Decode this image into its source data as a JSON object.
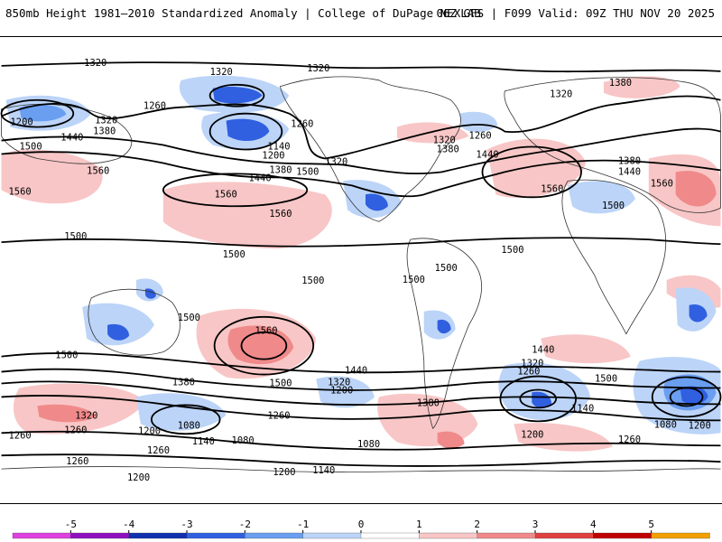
{
  "header": {
    "title": "850mb Height 1981–2010 Standardized Anomaly | College of DuPage NEXLAB",
    "run_info": "06Z GFS | F099 Valid: 09Z THU NOV 20 2025"
  },
  "map": {
    "contour_labels": [
      "1320",
      "1260",
      "1200",
      "1380",
      "1440",
      "1500",
      "1560",
      "1140",
      "1080"
    ],
    "labels": [
      {
        "text": "1320"
      },
      {
        "text": "1320"
      },
      {
        "text": "1320"
      },
      {
        "text": "1380"
      },
      {
        "text": "1200"
      },
      {
        "text": "1260"
      },
      {
        "text": "1320"
      },
      {
        "text": "1260"
      },
      {
        "text": "1320"
      },
      {
        "text": "1380"
      },
      {
        "text": "1200"
      },
      {
        "text": "1140"
      },
      {
        "text": "1500"
      },
      {
        "text": "1440"
      },
      {
        "text": "1560"
      },
      {
        "text": "1560"
      },
      {
        "text": "1320"
      },
      {
        "text": "1380"
      },
      {
        "text": "1500"
      },
      {
        "text": "1440"
      },
      {
        "text": "1320"
      },
      {
        "text": "1380"
      },
      {
        "text": "1260"
      },
      {
        "text": "1440"
      },
      {
        "text": "1560"
      },
      {
        "text": "1380"
      },
      {
        "text": "1440"
      },
      {
        "text": "1560"
      },
      {
        "text": "1560"
      },
      {
        "text": "1500"
      },
      {
        "text": "1560"
      },
      {
        "text": "1500"
      },
      {
        "text": "1500"
      },
      {
        "text": "1500"
      },
      {
        "text": "1500"
      },
      {
        "text": "1500"
      },
      {
        "text": "1500"
      },
      {
        "text": "1500"
      },
      {
        "text": "1500"
      },
      {
        "text": "1560"
      },
      {
        "text": "1500"
      },
      {
        "text": "1440"
      },
      {
        "text": "1380"
      },
      {
        "text": "1320"
      },
      {
        "text": "1200"
      },
      {
        "text": "1440"
      },
      {
        "text": "1320"
      },
      {
        "text": "1260"
      },
      {
        "text": "1500"
      },
      {
        "text": "1380"
      },
      {
        "text": "1140"
      },
      {
        "text": "1260"
      },
      {
        "text": "1080"
      },
      {
        "text": "1200"
      },
      {
        "text": "1260"
      },
      {
        "text": "1320"
      },
      {
        "text": "1260"
      },
      {
        "text": "1200"
      },
      {
        "text": "1260"
      },
      {
        "text": "1140"
      },
      {
        "text": "1080"
      },
      {
        "text": "1260"
      },
      {
        "text": "1200"
      },
      {
        "text": "1140"
      },
      {
        "text": "1080"
      },
      {
        "text": "1200"
      },
      {
        "text": "1080"
      },
      {
        "text": "1200"
      },
      {
        "text": "1260"
      }
    ]
  },
  "colorbar": {
    "ticks": [
      "-5",
      "-4",
      "-3",
      "-2",
      "-1",
      "0",
      "1",
      "2",
      "3",
      "4",
      "5"
    ],
    "colors": [
      "#e040e0",
      "#9010c0",
      "#1030b0",
      "#3060e0",
      "#6a9ef0",
      "#bcd4f8",
      "#ffffff",
      "#f8c6c6",
      "#f08a8a",
      "#e04040",
      "#c00000",
      "#f0a000"
    ]
  }
}
